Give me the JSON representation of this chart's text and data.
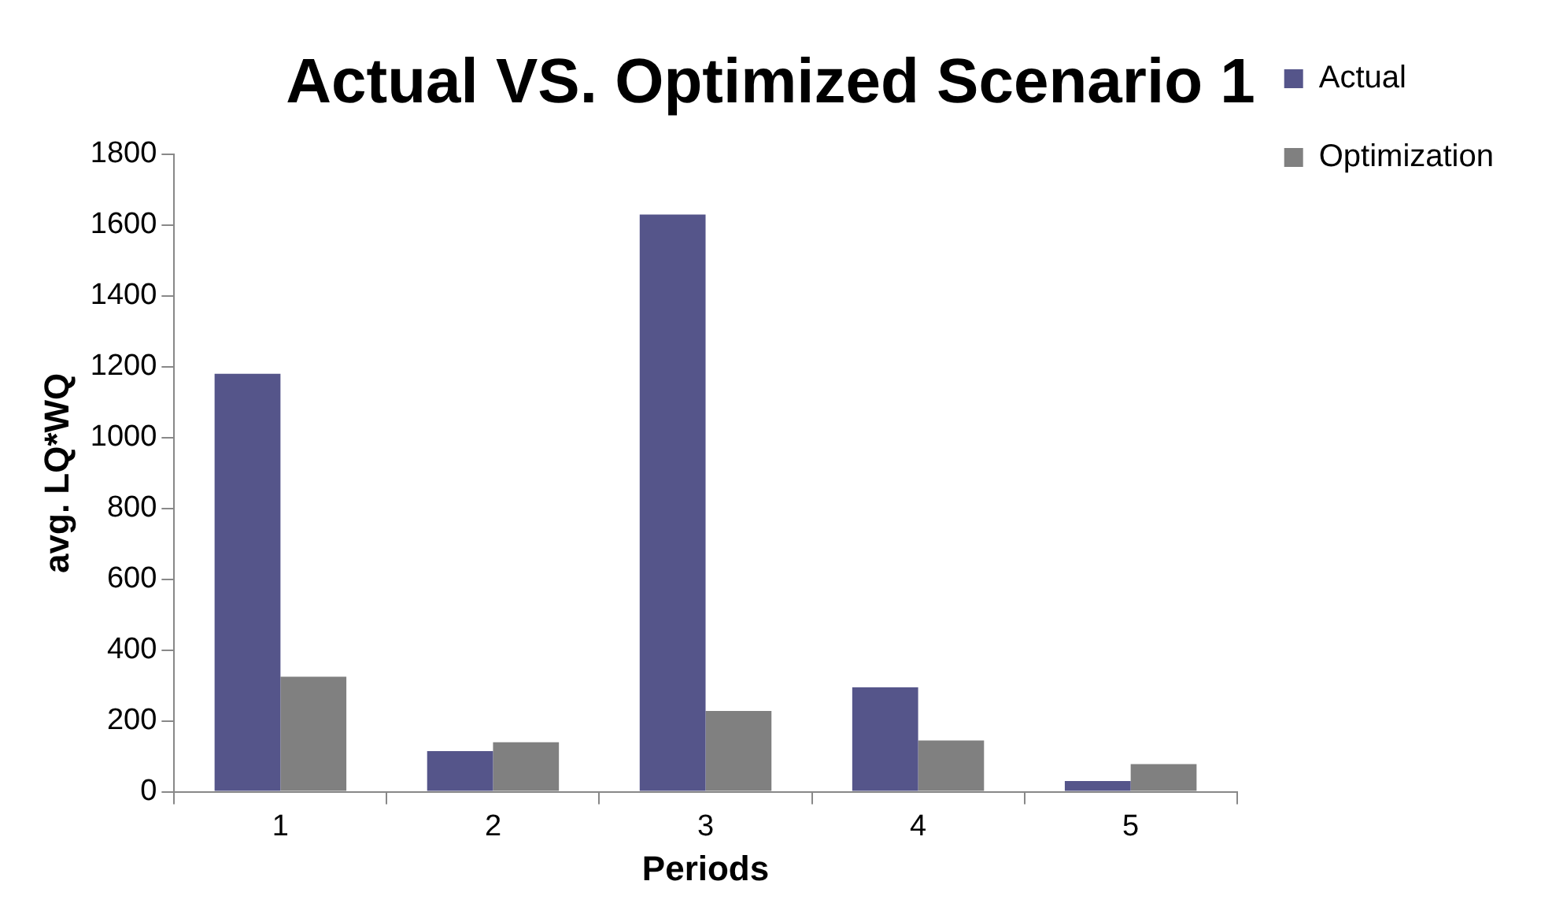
{
  "chart_data": {
    "type": "bar",
    "title": "Actual VS. Optimized Scenario 1",
    "xlabel": "Periods",
    "ylabel": "avg. LQ*WQ",
    "categories": [
      "1",
      "2",
      "3",
      "4",
      "5"
    ],
    "series": [
      {
        "name": "Actual",
        "color": "#55558a",
        "values": [
          1180,
          115,
          1630,
          295,
          30
        ]
      },
      {
        "name": "Optimization",
        "color": "#808080",
        "values": [
          325,
          140,
          228,
          145,
          78
        ]
      }
    ],
    "ylim": [
      0,
      1800
    ],
    "yticks": [
      0,
      200,
      400,
      600,
      800,
      1000,
      1200,
      1400,
      1600,
      1800
    ],
    "grid": false,
    "legend": "right"
  }
}
